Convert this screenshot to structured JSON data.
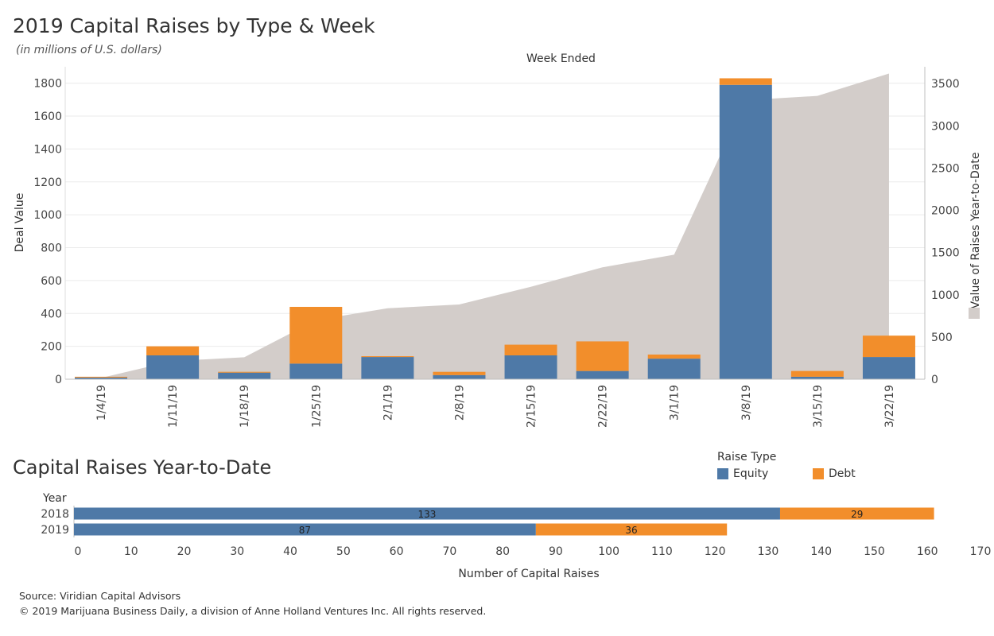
{
  "header": {
    "title": "2019 Capital Raises by Type & Week",
    "subtitle": "(in millions of U.S. dollars)"
  },
  "legend": {
    "title": "Raise Type",
    "items": [
      {
        "label": "Equity",
        "color": "#4e79a7"
      },
      {
        "label": "Debt",
        "color": "#f28e2b"
      }
    ]
  },
  "ytd_section": {
    "title": "Capital Raises Year-to-Date"
  },
  "footer": {
    "source": "Source: Viridian Capital Advisors",
    "copyright": "© 2019 Marijuana Business Daily, a division of Anne Holland Ventures Inc. All rights reserved."
  },
  "colors": {
    "equity": "#4e79a7",
    "debt": "#f28e2b",
    "area": "#d3cdca",
    "grid": "#ebebeb",
    "axis": "#bfbfbf"
  },
  "chart_data": [
    {
      "type": "bar",
      "stacked": true,
      "x_title": "Week Ended",
      "ylabel": "Deal Value",
      "y2label": "Value of Raises Year-to-Date",
      "categories": [
        "1/4/19",
        "1/11/19",
        "1/18/19",
        "1/25/19",
        "2/1/19",
        "2/8/19",
        "2/15/19",
        "2/22/19",
        "3/1/19",
        "3/8/19",
        "3/15/19",
        "3/22/19"
      ],
      "series": [
        {
          "name": "Equity",
          "values": [
            10,
            145,
            40,
            95,
            135,
            25,
            145,
            50,
            125,
            1790,
            15,
            135
          ]
        },
        {
          "name": "Debt",
          "values": [
            5,
            55,
            5,
            345,
            5,
            20,
            65,
            180,
            25,
            40,
            35,
            130
          ]
        }
      ],
      "ylim": [
        0,
        1900
      ],
      "yticks": [
        0,
        200,
        400,
        600,
        800,
        1000,
        1200,
        1400,
        1600,
        1800
      ],
      "secondary": {
        "type": "area",
        "name": "Value of Raises Year-to-Date",
        "values": [
          15,
          215,
          260,
          700,
          840,
          885,
          1095,
          1325,
          1475,
          3305,
          3355,
          3620
        ],
        "ylim": [
          0,
          3700
        ],
        "yticks": [
          0,
          500,
          1000,
          1500,
          2000,
          2500,
          3000,
          3500
        ]
      },
      "grid": true
    },
    {
      "type": "bar",
      "orientation": "horizontal",
      "stacked": true,
      "ylabel": "Year",
      "xlabel": "Number of Capital Raises",
      "categories": [
        "2018",
        "2019"
      ],
      "series": [
        {
          "name": "Equity",
          "values": [
            133,
            87
          ]
        },
        {
          "name": "Debt",
          "values": [
            29,
            36
          ]
        }
      ],
      "xlim": [
        0,
        170
      ],
      "xticks": [
        0,
        10,
        20,
        30,
        40,
        50,
        60,
        70,
        80,
        90,
        100,
        110,
        120,
        130,
        140,
        150,
        160,
        170
      ]
    }
  ]
}
